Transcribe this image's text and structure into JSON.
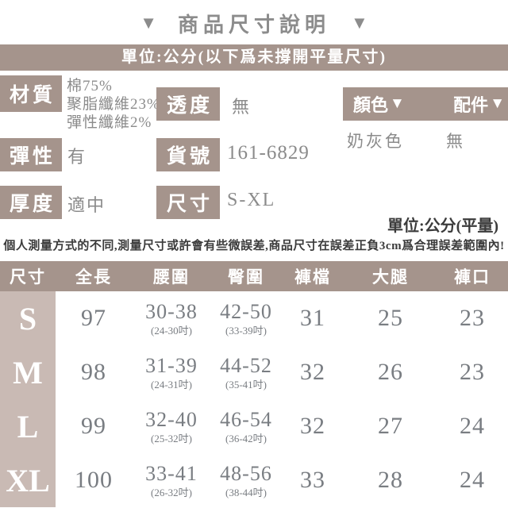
{
  "colors": {
    "taupe": "#a5948c",
    "size_column": "#c9bab4",
    "title_text": "#8c8c8c",
    "value_text": "#8b8b8b",
    "number_text": "#797d82",
    "dark_text": "#3b3b3b"
  },
  "header": {
    "title": "商品尺寸說明",
    "left_arrow": "▼",
    "right_arrow": "▼",
    "unit_banner": "單位:公分(以下爲未撐開平量尺寸)"
  },
  "specs": {
    "material_label": "材質",
    "material_line1": "棉75%",
    "material_line2": "聚脂纖維23%",
    "material_line3": "彈性纖維2%",
    "transparency_label": "透度",
    "transparency_value": "無",
    "color_label": "顏色",
    "color_arrow": "▼",
    "color_value": "奶灰色",
    "accessory_label": "配件",
    "accessory_arrow": "▼",
    "accessory_value": "無",
    "elasticity_label": "彈性",
    "elasticity_value": "有",
    "item_no_label": "貨號",
    "item_no_value": "161-6829",
    "thickness_label": "厚度",
    "thickness_value": "適中",
    "size_label": "尺寸",
    "size_value": "S-XL"
  },
  "notes": {
    "unit_flat": "單位:公分(平量)",
    "disclaimer": "個人測量方式的不同,測量尺寸或許會有些微誤差,商品尺寸在誤差正負3cm爲合理誤差範圍內!"
  },
  "chart_data": {
    "type": "table",
    "headers": [
      "尺寸",
      "全長",
      "腰圍",
      "臀圍",
      "褲檔",
      "大腿",
      "褲口"
    ],
    "rows": [
      {
        "size": "S",
        "full_length": "97",
        "waist": "30-38",
        "waist_inch": "(24-30吋)",
        "hip": "42-50",
        "hip_inch": "(33-39吋)",
        "crotch": "31",
        "thigh": "25",
        "hem": "23"
      },
      {
        "size": "M",
        "full_length": "98",
        "waist": "31-39",
        "waist_inch": "(24-31吋)",
        "hip": "44-52",
        "hip_inch": "(35-41吋)",
        "crotch": "32",
        "thigh": "26",
        "hem": "23"
      },
      {
        "size": "L",
        "full_length": "99",
        "waist": "32-40",
        "waist_inch": "(25-32吋)",
        "hip": "46-54",
        "hip_inch": "(36-42吋)",
        "crotch": "32",
        "thigh": "27",
        "hem": "24"
      },
      {
        "size": "XL",
        "full_length": "100",
        "waist": "33-41",
        "waist_inch": "(26-32吋)",
        "hip": "48-56",
        "hip_inch": "(38-44吋)",
        "crotch": "33",
        "thigh": "28",
        "hem": "24"
      }
    ]
  }
}
